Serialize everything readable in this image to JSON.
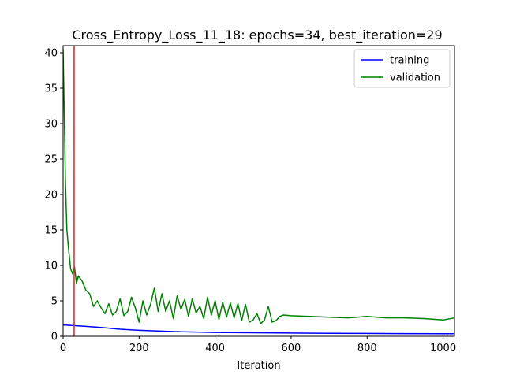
{
  "chart_data": {
    "type": "line",
    "title": "Cross_Entropy_Loss_11_18: epochs=34, best_iteration=29",
    "xlabel": "Iteration",
    "ylabel": "",
    "xlim": [
      0,
      1030
    ],
    "ylim": [
      0,
      41
    ],
    "xticks": [
      0,
      200,
      400,
      600,
      800,
      1000
    ],
    "yticks": [
      0,
      5,
      10,
      15,
      20,
      25,
      30,
      35,
      40
    ],
    "grid": false,
    "legend_position": "top-right",
    "best_iteration": 29,
    "best_iteration_color": "#d62728",
    "series": [
      {
        "name": "training",
        "color": "#0000ff",
        "x": [
          0,
          30,
          60,
          100,
          150,
          200,
          250,
          300,
          400,
          500,
          600,
          700,
          800,
          900,
          1000,
          1030
        ],
        "y": [
          1.6,
          1.5,
          1.4,
          1.25,
          1.0,
          0.85,
          0.75,
          0.65,
          0.55,
          0.5,
          0.45,
          0.42,
          0.4,
          0.38,
          0.37,
          0.37
        ]
      },
      {
        "name": "validation",
        "color": "#008000",
        "x": [
          0,
          3,
          6,
          10,
          15,
          20,
          25,
          30,
          35,
          40,
          50,
          60,
          70,
          80,
          90,
          100,
          110,
          120,
          130,
          140,
          150,
          160,
          170,
          180,
          190,
          200,
          210,
          220,
          230,
          240,
          250,
          260,
          270,
          280,
          290,
          300,
          310,
          320,
          330,
          340,
          350,
          360,
          370,
          380,
          390,
          400,
          410,
          420,
          430,
          440,
          450,
          460,
          470,
          480,
          490,
          500,
          510,
          520,
          530,
          540,
          550,
          560,
          570,
          580,
          600,
          650,
          700,
          750,
          800,
          850,
          900,
          950,
          1000,
          1030
        ],
        "y": [
          40.5,
          32,
          22,
          15,
          12,
          9.5,
          8.8,
          9.8,
          7.5,
          8.5,
          7.8,
          6.5,
          6.0,
          4.2,
          5.0,
          4.0,
          3.2,
          4.6,
          3.0,
          3.5,
          5.3,
          2.9,
          3.5,
          5.5,
          4.0,
          2.0,
          5.0,
          3.0,
          4.5,
          6.8,
          3.5,
          6.0,
          3.5,
          5.0,
          2.5,
          5.7,
          3.8,
          5.2,
          2.8,
          5.3,
          3.3,
          4.2,
          2.5,
          5.5,
          3.0,
          5.0,
          2.4,
          4.8,
          2.7,
          4.7,
          2.6,
          4.6,
          2.2,
          4.5,
          2.0,
          2.3,
          3.2,
          1.8,
          2.3,
          4.2,
          2.0,
          2.2,
          2.8,
          3.0,
          2.9,
          2.8,
          2.7,
          2.6,
          2.8,
          2.6,
          2.6,
          2.5,
          2.3,
          2.6
        ]
      }
    ]
  }
}
